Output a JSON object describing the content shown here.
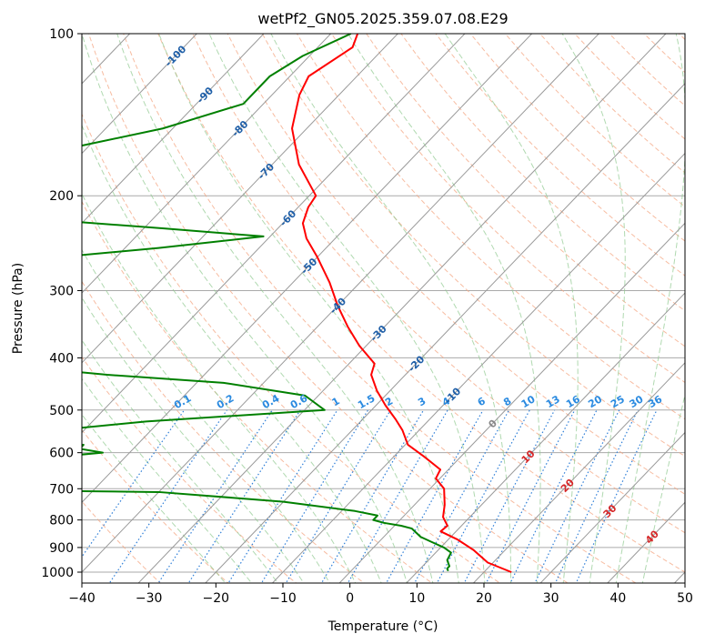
{
  "chart_data": {
    "type": "line",
    "subtype": "skew-T log-P",
    "title": "wetPf2_GN05.2025.359.07.08.E29",
    "xlabel": "Temperature (°C)",
    "ylabel": "Pressure (hPa)",
    "xlim": [
      -40,
      50
    ],
    "ylim": [
      1050,
      100
    ],
    "yscale": "log",
    "x_ticks": [
      "−40",
      "−30",
      "−20",
      "−10",
      "0",
      "10",
      "20",
      "30",
      "40",
      "50"
    ],
    "y_ticks": [
      {
        "p": 100,
        "label": "100"
      },
      {
        "p": 200,
        "label": "200"
      },
      {
        "p": 300,
        "label": "300"
      },
      {
        "p": 400,
        "label": "400"
      },
      {
        "p": 500,
        "label": "500"
      },
      {
        "p": 600,
        "label": "600"
      },
      {
        "p": 700,
        "label": "700"
      },
      {
        "p": 800,
        "label": "800"
      },
      {
        "p": 900,
        "label": "900"
      },
      {
        "p": 1000,
        "label": "1000"
      }
    ],
    "colors": {
      "temperature": "#ff0000",
      "dewpoint": "#008000",
      "isotherm": "#999999",
      "dry_adiabat": "#f4a582",
      "moist_adiabat": "#8fc98f",
      "mixing_ratio": "#2f7fd8",
      "isotherm_label_cold": "#1f5fa8",
      "isotherm_label_warm": "#d62728",
      "isotherm_label_zero": "#888888",
      "mixing_ratio_label": "#2a8ae0"
    },
    "series": [
      {
        "color": "#ff0000",
        "points": [
          [
            -76.0,
            100
          ],
          [
            -74.8,
            106
          ],
          [
            -77.2,
            120
          ],
          [
            -75.9,
            130
          ],
          [
            -72.2,
            150
          ],
          [
            -66.0,
            175
          ],
          [
            -59.0,
            200
          ],
          [
            -58.5,
            210
          ],
          [
            -57.0,
            225
          ],
          [
            -54.3,
            240
          ],
          [
            -50.0,
            260
          ],
          [
            -44.5,
            290
          ],
          [
            -40.0,
            320
          ],
          [
            -35.5,
            350
          ],
          [
            -31.0,
            380
          ],
          [
            -26.2,
            410
          ],
          [
            -25.1,
            430
          ],
          [
            -22.0,
            460
          ],
          [
            -18.6,
            490
          ],
          [
            -15.1,
            520
          ],
          [
            -12.5,
            545
          ],
          [
            -9.6,
            580
          ],
          [
            -5.5,
            610
          ],
          [
            -1.2,
            645
          ],
          [
            -0.6,
            670
          ],
          [
            2.1,
            700
          ],
          [
            4.5,
            750
          ],
          [
            6.0,
            790
          ],
          [
            7.9,
            820
          ],
          [
            7.7,
            840
          ],
          [
            11.4,
            870
          ],
          [
            15.3,
            910
          ],
          [
            19.2,
            960
          ],
          [
            24.1,
            1000
          ]
        ]
      },
      {
        "color": "#008000",
        "points": [
          [
            -77.0,
            100
          ],
          [
            -81.0,
            110
          ],
          [
            -83.0,
            120
          ],
          [
            -83.0,
            135
          ],
          [
            -91.5,
            150
          ],
          [
            -104.0,
            165
          ],
          [
            -106.0,
            180
          ],
          [
            -103.0,
            195
          ],
          [
            -101.5,
            210
          ],
          [
            -99.0,
            220
          ],
          [
            -77.0,
            230
          ],
          [
            -61.0,
            238
          ],
          [
            -75.0,
            250
          ],
          [
            -91.0,
            262
          ],
          [
            -93.0,
            275
          ],
          [
            -90.0,
            290
          ],
          [
            -86.0,
            320
          ],
          [
            -86.5,
            345
          ],
          [
            -87.5,
            375
          ],
          [
            -89.0,
            392
          ],
          [
            -84.0,
            410
          ],
          [
            -64.5,
            430
          ],
          [
            -46.0,
            445
          ],
          [
            -32.0,
            470
          ],
          [
            -27.0,
            500
          ],
          [
            -52.0,
            525
          ],
          [
            -64.0,
            545
          ],
          [
            -66.0,
            565
          ],
          [
            -65.0,
            575
          ],
          [
            -58.0,
            580
          ],
          [
            -58.0,
            590
          ],
          [
            -54.0,
            600
          ],
          [
            -60.0,
            610
          ],
          [
            -72.0,
            625
          ],
          [
            -82.0,
            645
          ],
          [
            -82.0,
            680
          ],
          [
            -65.0,
            690
          ],
          [
            -84.0,
            700
          ],
          [
            -40.0,
            710
          ],
          [
            -20.0,
            740
          ],
          [
            -8.0,
            770
          ],
          [
            -4.0,
            785
          ],
          [
            -4.0,
            800
          ],
          [
            -2.0,
            810
          ],
          [
            1.0,
            820
          ],
          [
            3.0,
            830
          ],
          [
            5.5,
            860
          ],
          [
            8.0,
            880
          ],
          [
            10.5,
            900
          ],
          [
            12.3,
            920
          ],
          [
            12.8,
            950
          ],
          [
            14.0,
            975
          ],
          [
            14.0,
            985
          ],
          [
            14.5,
            995
          ]
        ]
      }
    ],
    "isotherm_labels": [
      {
        "t": -100,
        "text": "-100"
      },
      {
        "t": -90,
        "text": "-90"
      },
      {
        "t": -80,
        "text": "-80"
      },
      {
        "t": -70,
        "text": "-70"
      },
      {
        "t": -60,
        "text": "-60"
      },
      {
        "t": -50,
        "text": "-50"
      },
      {
        "t": -40,
        "text": "-40"
      },
      {
        "t": -30,
        "text": "-30"
      },
      {
        "t": -20,
        "text": "-20"
      },
      {
        "t": -10,
        "text": "-10"
      },
      {
        "t": 0,
        "text": "0"
      },
      {
        "t": 10,
        "text": "10"
      },
      {
        "t": 20,
        "text": "20"
      },
      {
        "t": 30,
        "text": "30"
      },
      {
        "t": 40,
        "text": "40"
      }
    ],
    "mixing_ratio_labels": [
      "0.1",
      "0.2",
      "0.4",
      "0.6",
      "1",
      "1.5",
      "2",
      "3",
      "4",
      "6",
      "8",
      "10",
      "13",
      "16",
      "20",
      "25",
      "30",
      "36"
    ]
  }
}
